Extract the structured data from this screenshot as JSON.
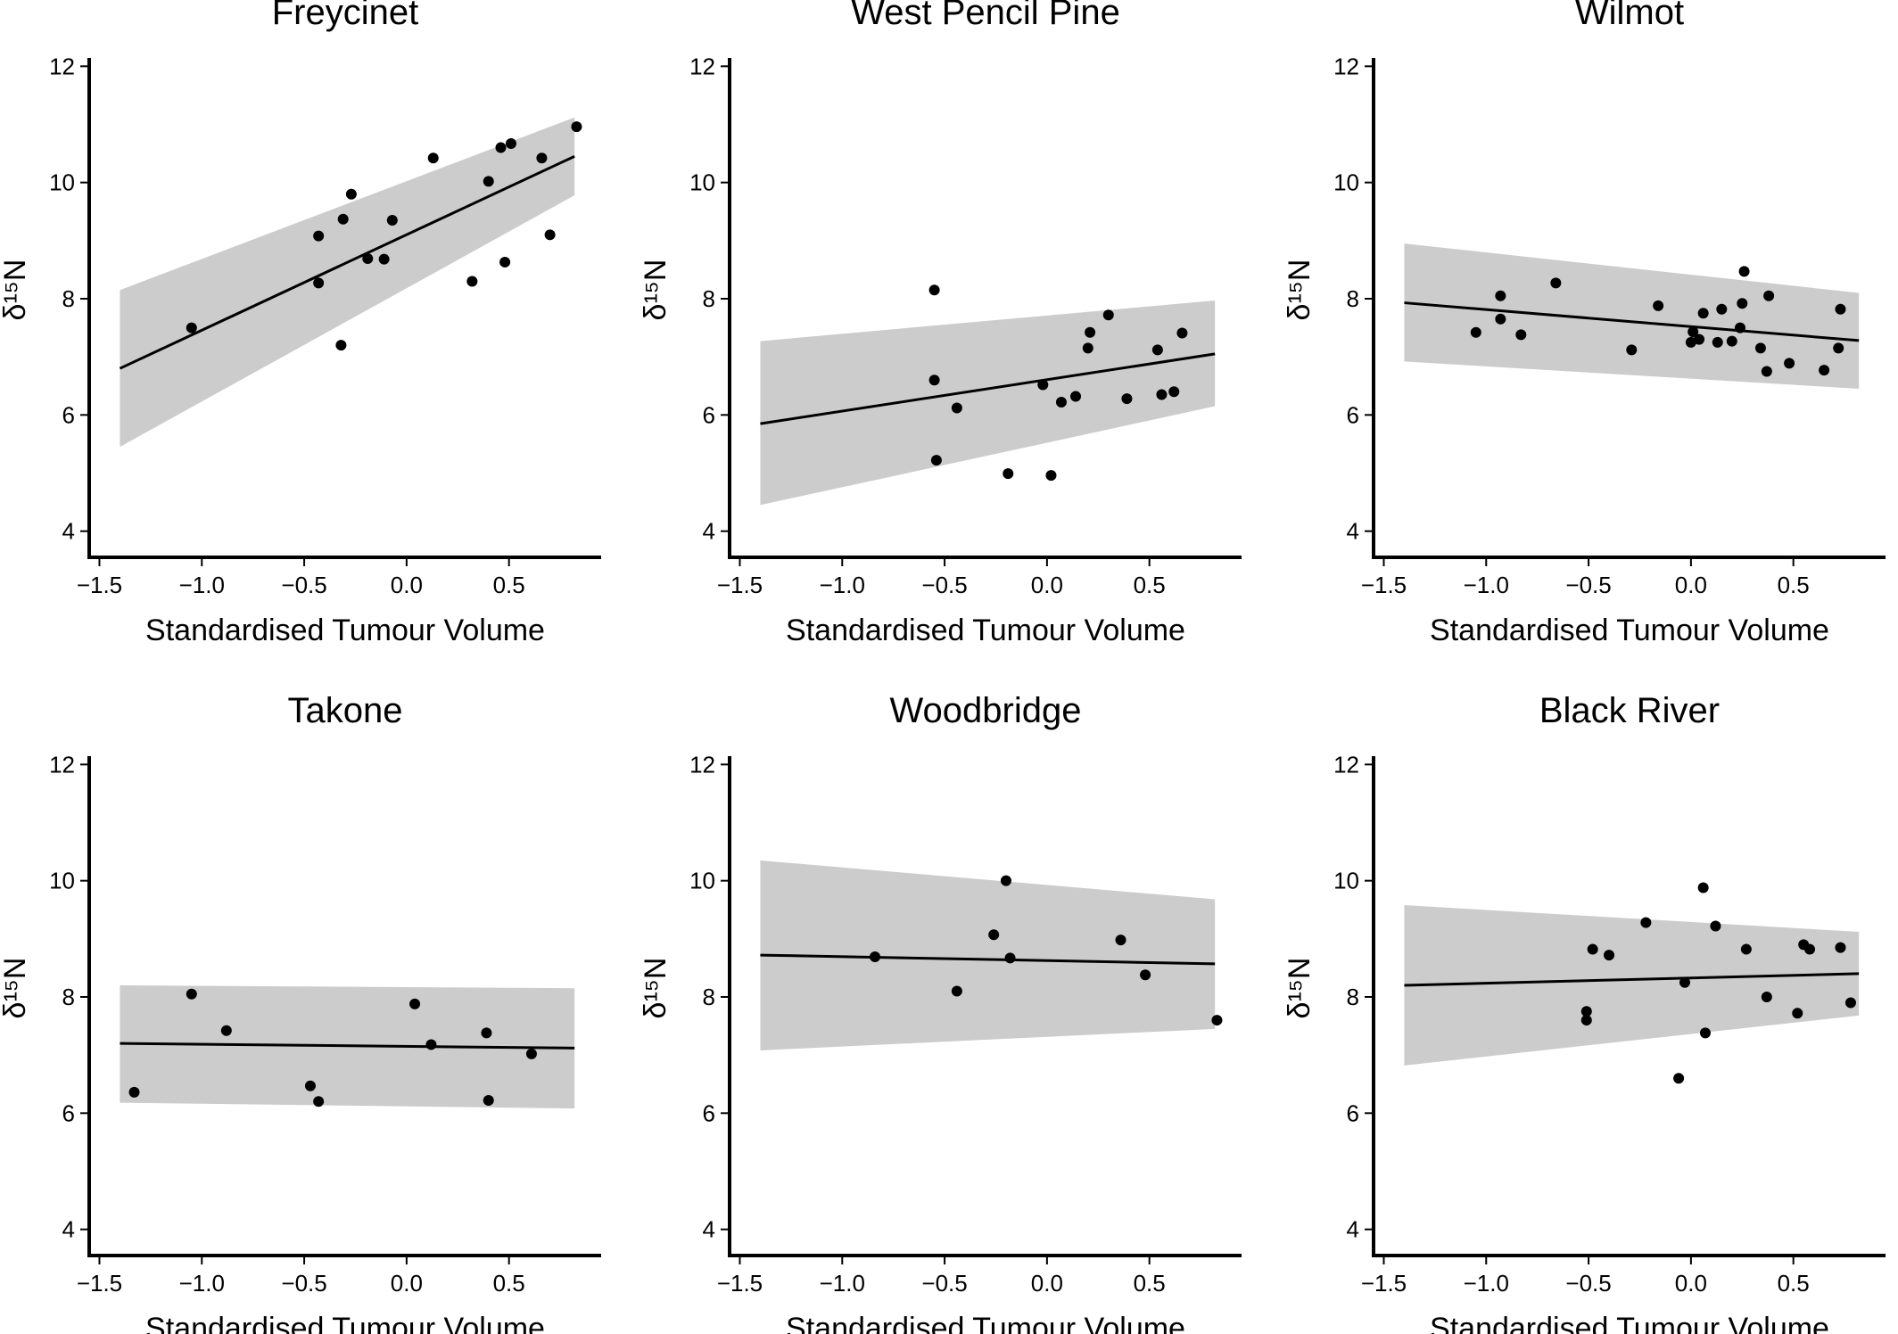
{
  "chart_data": [
    {
      "type": "scatter",
      "title": "Freycinet",
      "xlabel": "Standardised Tumour Volume",
      "ylabel": "δ¹⁵N",
      "xlim": [
        -1.55,
        0.95
      ],
      "ylim": [
        3.55,
        12.45
      ],
      "xticks": [
        -1.5,
        -1.0,
        -0.5,
        0.0,
        0.5
      ],
      "yticks": [
        4,
        6,
        8,
        10,
        12
      ],
      "fit": {
        "x": [
          -1.4,
          0.82
        ],
        "y": [
          6.8,
          10.45
        ]
      },
      "band": {
        "x": [
          -1.4,
          0.82
        ],
        "lower": [
          5.45,
          9.78
        ],
        "upper": [
          8.15,
          11.12
        ]
      },
      "points": [
        [
          -1.05,
          7.5
        ],
        [
          -0.43,
          9.08
        ],
        [
          -0.43,
          8.27
        ],
        [
          -0.32,
          7.2
        ],
        [
          -0.31,
          9.37
        ],
        [
          -0.27,
          9.8
        ],
        [
          -0.19,
          8.69
        ],
        [
          -0.11,
          8.68
        ],
        [
          -0.07,
          9.35
        ],
        [
          0.13,
          10.42
        ],
        [
          0.32,
          8.3
        ],
        [
          0.4,
          10.02
        ],
        [
          0.46,
          10.6
        ],
        [
          0.48,
          8.63
        ],
        [
          0.51,
          10.67
        ],
        [
          0.66,
          10.42
        ],
        [
          0.7,
          9.1
        ],
        [
          0.83,
          10.96
        ]
      ]
    },
    {
      "type": "scatter",
      "title": "West Pencil Pine",
      "xlabel": "Standardised Tumour Volume",
      "ylabel": "δ¹⁵N",
      "xlim": [
        -1.55,
        0.95
      ],
      "ylim": [
        3.55,
        12.45
      ],
      "xticks": [
        -1.5,
        -1.0,
        -0.5,
        0.0,
        0.5
      ],
      "yticks": [
        4,
        6,
        8,
        10,
        12
      ],
      "fit": {
        "x": [
          -1.4,
          0.82
        ],
        "y": [
          5.85,
          7.05
        ]
      },
      "band": {
        "x": [
          -1.4,
          0.82
        ],
        "lower": [
          4.45,
          6.15
        ],
        "upper": [
          7.27,
          7.97
        ]
      },
      "points": [
        [
          -0.55,
          8.15
        ],
        [
          -0.55,
          6.6
        ],
        [
          -0.54,
          5.22
        ],
        [
          -0.44,
          6.12
        ],
        [
          -0.19,
          4.99
        ],
        [
          -0.02,
          6.52
        ],
        [
          0.02,
          4.96
        ],
        [
          0.07,
          6.22
        ],
        [
          0.14,
          6.32
        ],
        [
          0.2,
          7.15
        ],
        [
          0.21,
          7.42
        ],
        [
          0.3,
          7.72
        ],
        [
          0.39,
          6.28
        ],
        [
          0.54,
          7.12
        ],
        [
          0.56,
          6.35
        ],
        [
          0.62,
          6.4
        ],
        [
          0.66,
          7.41
        ]
      ]
    },
    {
      "type": "scatter",
      "title": "Wilmot",
      "xlabel": "Standardised Tumour Volume",
      "ylabel": "δ¹⁵N",
      "xlim": [
        -1.55,
        0.95
      ],
      "ylim": [
        3.55,
        12.45
      ],
      "xticks": [
        -1.5,
        -1.0,
        -0.5,
        0.0,
        0.5
      ],
      "yticks": [
        4,
        6,
        8,
        10,
        12
      ],
      "fit": {
        "x": [
          -1.4,
          0.82
        ],
        "y": [
          7.93,
          7.28
        ]
      },
      "band": {
        "x": [
          -1.4,
          0.82
        ],
        "lower": [
          6.92,
          6.45
        ],
        "upper": [
          8.95,
          8.1
        ]
      },
      "points": [
        [
          -1.05,
          7.42
        ],
        [
          -0.93,
          8.05
        ],
        [
          -0.93,
          7.65
        ],
        [
          -0.83,
          7.38
        ],
        [
          -0.66,
          8.27
        ],
        [
          -0.29,
          7.12
        ],
        [
          -0.16,
          7.88
        ],
        [
          0.0,
          7.25
        ],
        [
          0.01,
          7.43
        ],
        [
          0.04,
          7.3
        ],
        [
          0.06,
          7.75
        ],
        [
          0.13,
          7.25
        ],
        [
          0.15,
          7.82
        ],
        [
          0.2,
          7.27
        ],
        [
          0.24,
          7.5
        ],
        [
          0.25,
          7.92
        ],
        [
          0.26,
          8.47
        ],
        [
          0.34,
          7.15
        ],
        [
          0.37,
          6.75
        ],
        [
          0.38,
          8.05
        ],
        [
          0.48,
          6.89
        ],
        [
          0.65,
          6.77
        ],
        [
          0.72,
          7.15
        ],
        [
          0.73,
          7.82
        ]
      ]
    },
    {
      "type": "scatter",
      "title": "Takone",
      "xlabel": "Standardised Tumour Volume",
      "ylabel": "δ¹⁵N",
      "xlim": [
        -1.55,
        0.95
      ],
      "ylim": [
        3.55,
        12.45
      ],
      "xticks": [
        -1.5,
        -1.0,
        -0.5,
        0.0,
        0.5
      ],
      "yticks": [
        4,
        6,
        8,
        10,
        12
      ],
      "fit": {
        "x": [
          -1.4,
          0.82
        ],
        "y": [
          7.2,
          7.12
        ]
      },
      "band": {
        "x": [
          -1.4,
          0.82
        ],
        "lower": [
          6.18,
          6.08
        ],
        "upper": [
          8.2,
          8.15
        ]
      },
      "points": [
        [
          -1.33,
          6.36
        ],
        [
          -1.05,
          8.05
        ],
        [
          -0.88,
          7.42
        ],
        [
          -0.47,
          6.47
        ],
        [
          -0.43,
          6.2
        ],
        [
          0.04,
          7.88
        ],
        [
          0.12,
          7.18
        ],
        [
          0.39,
          7.38
        ],
        [
          0.4,
          6.22
        ],
        [
          0.61,
          7.02
        ]
      ]
    },
    {
      "type": "scatter",
      "title": "Woodbridge",
      "xlabel": "Standardised Tumour Volume",
      "ylabel": "δ¹⁵N",
      "xlim": [
        -1.55,
        0.95
      ],
      "ylim": [
        3.55,
        12.45
      ],
      "xticks": [
        -1.5,
        -1.0,
        -0.5,
        0.0,
        0.5
      ],
      "yticks": [
        4,
        6,
        8,
        10,
        12
      ],
      "fit": {
        "x": [
          -1.4,
          0.82
        ],
        "y": [
          8.72,
          8.57
        ]
      },
      "band": {
        "x": [
          -1.4,
          0.82
        ],
        "lower": [
          7.08,
          7.45
        ],
        "upper": [
          10.35,
          9.68
        ]
      },
      "points": [
        [
          -0.84,
          8.69
        ],
        [
          -0.44,
          8.1
        ],
        [
          -0.26,
          9.07
        ],
        [
          -0.2,
          10.0
        ],
        [
          -0.18,
          8.67
        ],
        [
          0.36,
          8.98
        ],
        [
          0.48,
          8.38
        ],
        [
          0.83,
          7.6
        ]
      ]
    },
    {
      "type": "scatter",
      "title": "Black River",
      "xlabel": "Standardised Tumour Volume",
      "ylabel": "δ¹⁵N",
      "xlim": [
        -1.55,
        0.95
      ],
      "ylim": [
        3.55,
        12.45
      ],
      "xticks": [
        -1.5,
        -1.0,
        -0.5,
        0.0,
        0.5
      ],
      "yticks": [
        4,
        6,
        8,
        10,
        12
      ],
      "fit": {
        "x": [
          -1.4,
          0.82
        ],
        "y": [
          8.2,
          8.4
        ]
      },
      "band": {
        "x": [
          -1.4,
          0.82
        ],
        "lower": [
          6.82,
          7.68
        ],
        "upper": [
          9.58,
          9.12
        ]
      },
      "points": [
        [
          -0.51,
          7.6
        ],
        [
          -0.51,
          7.75
        ],
        [
          -0.48,
          8.82
        ],
        [
          -0.4,
          8.72
        ],
        [
          -0.22,
          9.28
        ],
        [
          -0.06,
          6.6
        ],
        [
          -0.03,
          8.25
        ],
        [
          0.06,
          9.88
        ],
        [
          0.07,
          7.38
        ],
        [
          0.12,
          9.22
        ],
        [
          0.27,
          8.82
        ],
        [
          0.37,
          8.0
        ],
        [
          0.52,
          7.72
        ],
        [
          0.55,
          8.9
        ],
        [
          0.58,
          8.82
        ],
        [
          0.73,
          8.85
        ],
        [
          0.78,
          7.9
        ]
      ]
    }
  ]
}
